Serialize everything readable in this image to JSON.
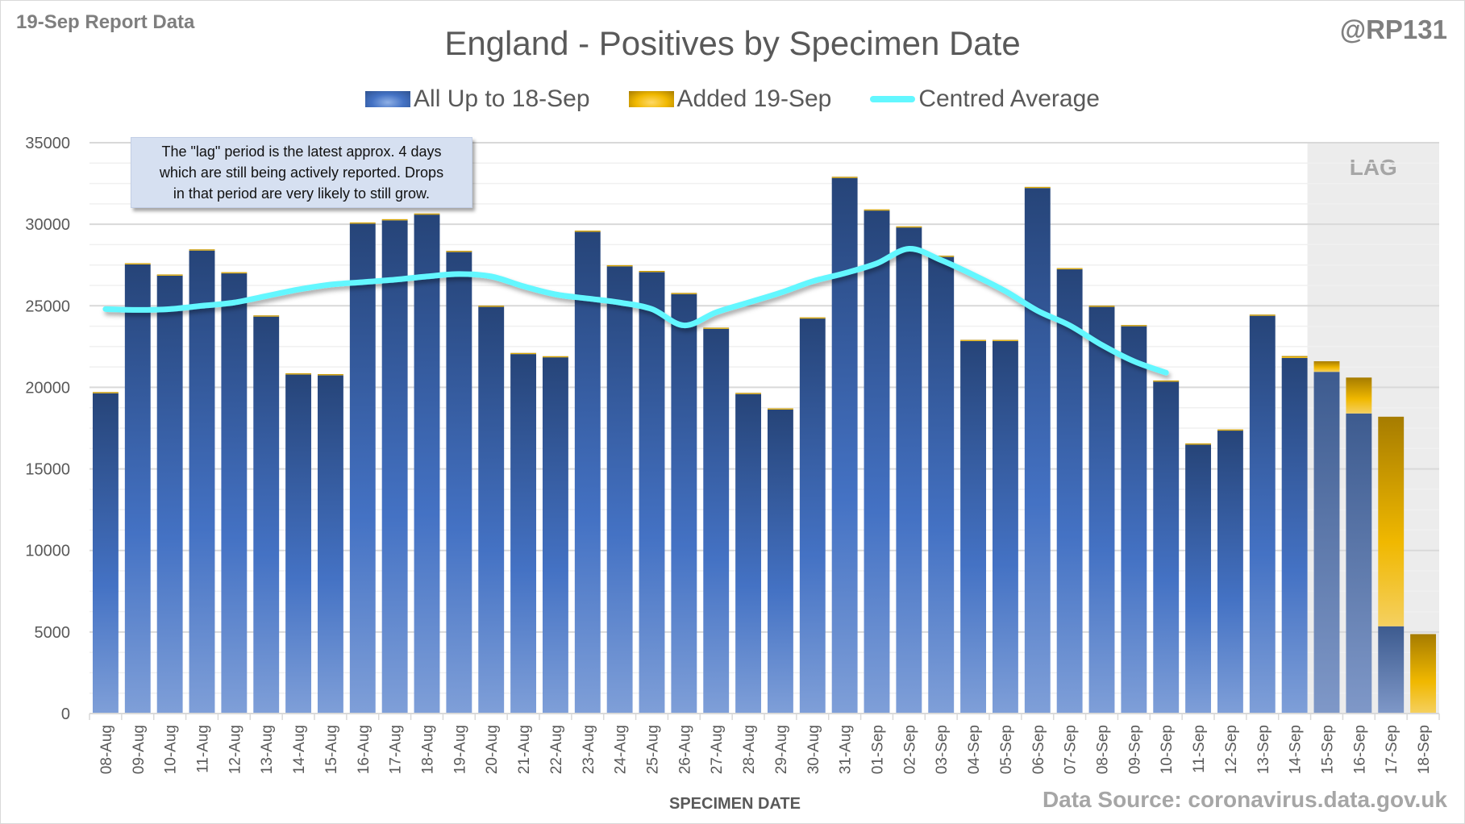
{
  "header": {
    "report_label": "19-Sep Report Data",
    "author": "@RP131",
    "source": "Data Source: coronavirus.data.gov.uk"
  },
  "note": {
    "line1": "The \"lag\" period is the latest approx. 4 days",
    "line2": "which are still being actively reported.  Drops",
    "line3": "in that period are very likely to still grow."
  },
  "colors": {
    "blue": "#4472c4",
    "blue_dark": "#264478",
    "gold": "#f0b800",
    "gold_dark": "#a67c00",
    "average_line": "#63f7ff",
    "lag_band": "#ececec",
    "grid": "#d9d9d9"
  },
  "chart_data": {
    "type": "bar",
    "stacked": true,
    "title": "England - Positives by Specimen Date",
    "xlabel": "SPECIMEN DATE",
    "ylabel": "",
    "ylim": [
      0,
      35000
    ],
    "yticks": [
      0,
      5000,
      10000,
      15000,
      20000,
      25000,
      30000,
      35000
    ],
    "grid": true,
    "legend_position": "top-center",
    "lag_region": {
      "label": "LAG",
      "from": "15-Sep",
      "to": "18-Sep"
    },
    "categories": [
      "08-Aug",
      "09-Aug",
      "10-Aug",
      "11-Aug",
      "12-Aug",
      "13-Aug",
      "14-Aug",
      "15-Aug",
      "16-Aug",
      "17-Aug",
      "18-Aug",
      "19-Aug",
      "20-Aug",
      "21-Aug",
      "22-Aug",
      "23-Aug",
      "24-Aug",
      "25-Aug",
      "26-Aug",
      "27-Aug",
      "28-Aug",
      "29-Aug",
      "30-Aug",
      "31-Aug",
      "01-Sep",
      "02-Sep",
      "03-Sep",
      "04-Sep",
      "05-Sep",
      "06-Sep",
      "07-Sep",
      "08-Sep",
      "09-Sep",
      "10-Sep",
      "11-Sep",
      "12-Sep",
      "13-Sep",
      "14-Sep",
      "15-Sep",
      "16-Sep",
      "17-Sep",
      "18-Sep"
    ],
    "series": [
      {
        "name": "All Up to 18-Sep",
        "type": "bar",
        "values": [
          19650,
          27550,
          26900,
          28400,
          27000,
          24350,
          20800,
          20750,
          30050,
          30250,
          30600,
          28350,
          24950,
          22050,
          21850,
          29550,
          27450,
          27100,
          25750,
          23600,
          19600,
          18650,
          24250,
          32850,
          30850,
          29850,
          28050,
          22850,
          22850,
          32250,
          27250,
          24950,
          23800,
          20400,
          16500,
          17400,
          24400,
          21800,
          20950,
          18400,
          5350,
          0
        ]
      },
      {
        "name": "Added 19-Sep",
        "type": "bar",
        "values": [
          60,
          60,
          20,
          60,
          60,
          60,
          60,
          60,
          60,
          60,
          60,
          20,
          60,
          60,
          60,
          60,
          40,
          40,
          40,
          60,
          60,
          60,
          40,
          60,
          60,
          20,
          20,
          60,
          60,
          40,
          60,
          60,
          20,
          20,
          60,
          20,
          60,
          120,
          650,
          2200,
          12850,
          4870
        ]
      },
      {
        "name": "Centred Average",
        "type": "line",
        "values": [
          24800,
          24750,
          24800,
          25000,
          25200,
          25600,
          26000,
          26300,
          26450,
          26600,
          26800,
          26950,
          26800,
          26200,
          25700,
          25450,
          25200,
          24800,
          23800,
          24600,
          25200,
          25800,
          26500,
          27000,
          27600,
          28500,
          27800,
          26900,
          25900,
          24700,
          23800,
          22600,
          21600,
          20900,
          null,
          null,
          null,
          null,
          null,
          null,
          null,
          null
        ]
      }
    ]
  }
}
